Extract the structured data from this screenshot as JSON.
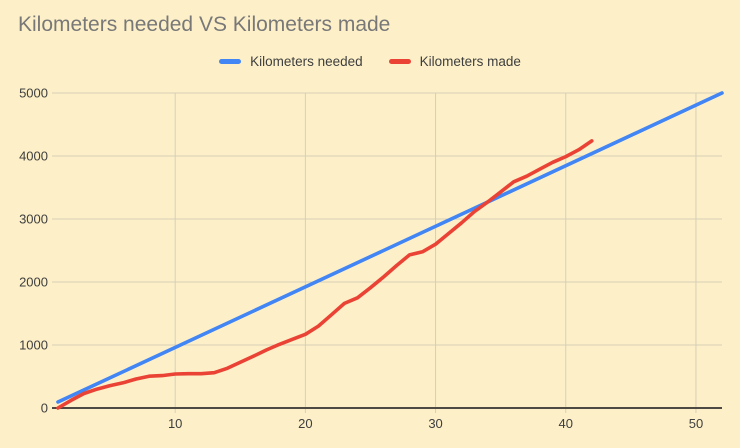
{
  "colors": {
    "background": "#fdf0c8",
    "gridline": "#d6cfb8",
    "axis_line": "#4d4a43",
    "title_text": "#787878",
    "tick_text": "#3e3e3e",
    "needed_line": "#4285f4",
    "made_line": "#ea4335"
  },
  "chart_data": {
    "type": "line",
    "title": "Kilometers needed VS Kilometers made",
    "xlabel": "",
    "ylabel": "",
    "xlim": [
      1,
      52
    ],
    "ylim": [
      0,
      5000
    ],
    "x_ticks": [
      10,
      20,
      30,
      40,
      50
    ],
    "y_ticks": [
      0,
      1000,
      2000,
      3000,
      4000,
      5000
    ],
    "grid": true,
    "legend_position": "top",
    "series": [
      {
        "name": "Kilometers needed",
        "color": "#4285f4",
        "shape": "linear",
        "x": [
          1,
          52
        ],
        "values": [
          96,
          5000
        ]
      },
      {
        "name": "Kilometers made",
        "color": "#ea4335",
        "x": [
          1,
          2,
          3,
          4,
          5,
          6,
          7,
          8,
          9,
          10,
          11,
          12,
          13,
          14,
          15,
          16,
          17,
          18,
          19,
          20,
          21,
          22,
          23,
          24,
          25,
          26,
          27,
          28,
          29,
          30,
          31,
          32,
          33,
          34,
          35,
          36,
          37,
          38,
          39,
          40,
          41,
          42
        ],
        "values": [
          0,
          120,
          230,
          300,
          355,
          400,
          460,
          505,
          515,
          540,
          545,
          545,
          560,
          630,
          725,
          820,
          920,
          1010,
          1090,
          1170,
          1300,
          1480,
          1660,
          1750,
          1910,
          2080,
          2260,
          2430,
          2480,
          2600,
          2770,
          2940,
          3120,
          3270,
          3430,
          3590,
          3680,
          3790,
          3900,
          3990,
          4100,
          4240
        ]
      }
    ]
  }
}
